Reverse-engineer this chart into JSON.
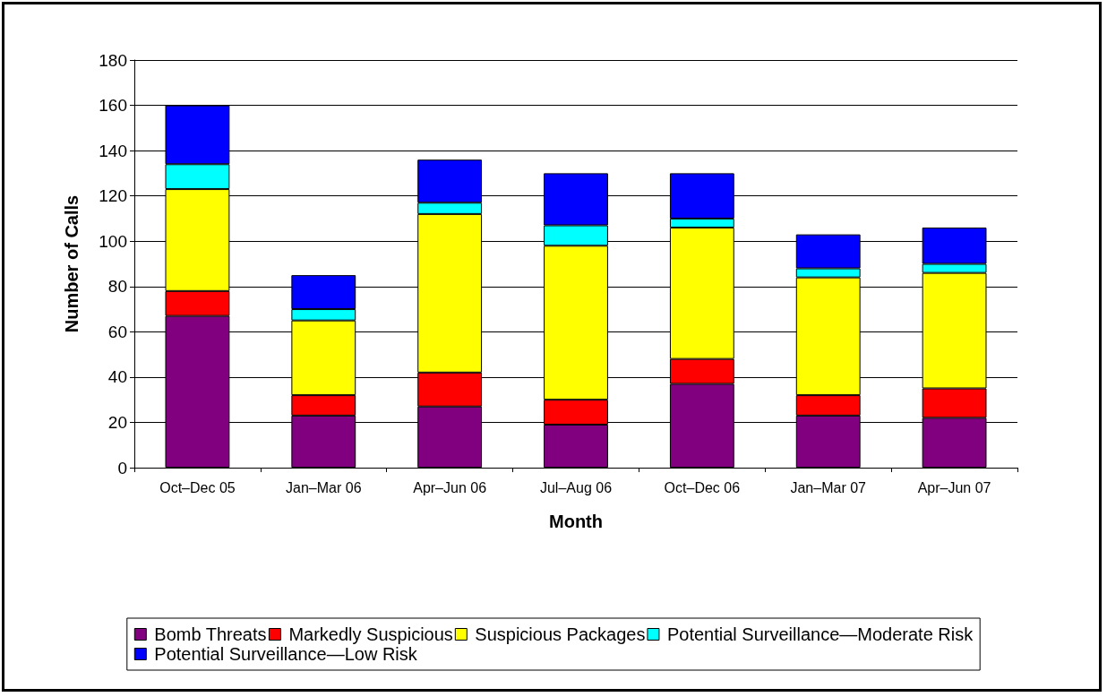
{
  "chart_data": {
    "type": "bar",
    "stacked": true,
    "xlabel": "Month",
    "ylabel": "Number of Calls",
    "categories": [
      "Oct–Dec 05",
      "Jan–Mar 06",
      "Apr–Jun 06",
      "Jul–Aug 06",
      "Oct–Dec 06",
      "Jan–Mar 07",
      "Apr–Jun 07"
    ],
    "series": [
      {
        "name": "Bomb Threats",
        "color": "#800080",
        "values": [
          67,
          23,
          27,
          19,
          37,
          23,
          22
        ]
      },
      {
        "name": "Markedly Suspicious",
        "color": "#ff0000",
        "values": [
          11,
          9,
          15,
          11,
          11,
          9,
          13
        ]
      },
      {
        "name": "Suspicious Packages",
        "color": "#ffff00",
        "values": [
          45,
          33,
          70,
          68,
          58,
          52,
          51
        ]
      },
      {
        "name": "Potential Surveillance—Moderate Risk",
        "color": "#00ffff",
        "values": [
          11,
          5,
          5,
          9,
          4,
          4,
          4
        ]
      },
      {
        "name": "Potential Surveillance—Low Risk",
        "color": "#0000ff",
        "values": [
          26,
          15,
          19,
          23,
          20,
          15,
          16
        ]
      }
    ],
    "ylim": [
      0,
      180
    ],
    "yticks": [
      0,
      20,
      40,
      60,
      80,
      100,
      120,
      140,
      160,
      180
    ],
    "grid": "y",
    "legend": "bottom"
  }
}
